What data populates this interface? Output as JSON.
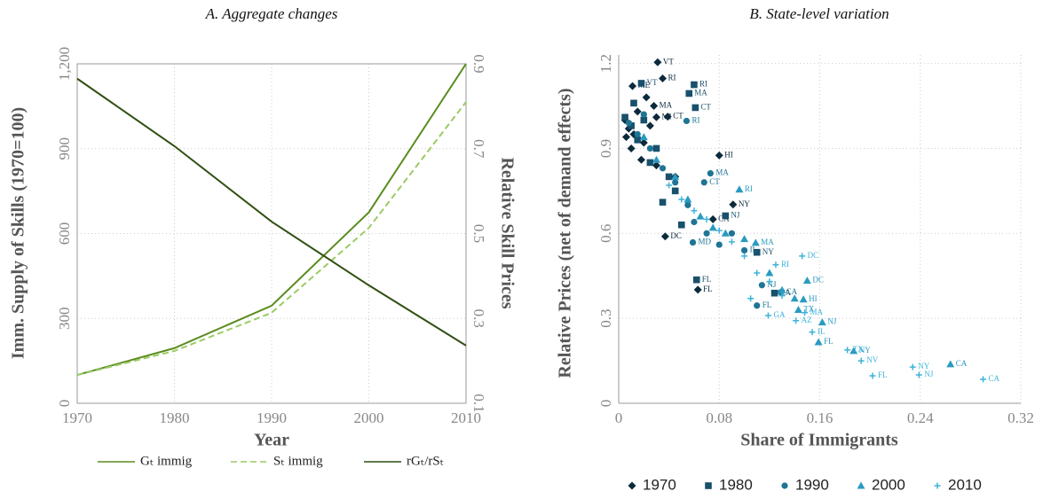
{
  "chart_data": [
    {
      "type": "line",
      "title": "A. Aggregate changes",
      "x_label": "Year",
      "y_label": "Imm. Supply of Skills (1970=100)",
      "y2_label": "Relative Skill Prices",
      "x": [
        1970,
        1980,
        1990,
        2000,
        2010
      ],
      "xlim": [
        1970,
        2010
      ],
      "xticks": [
        1970,
        1980,
        1990,
        2000,
        2010
      ],
      "ylim": [
        0,
        1200
      ],
      "yticks": [
        0,
        300,
        600,
        900,
        {
          "value": 1200,
          "label": "1,200"
        }
      ],
      "y2lim": [
        0.1,
        0.9
      ],
      "y2ticks": [
        0.1,
        0.3,
        0.5,
        0.7,
        0.9
      ],
      "grid": true,
      "legend": "bottom",
      "series": [
        {
          "name": "Gₜ immig",
          "color": "#5b8c1f",
          "dashed": false,
          "values": [
            100,
            195,
            345,
            675,
            1200
          ]
        },
        {
          "name": "Sₜ immig",
          "color": "#9bcb64",
          "dashed": true,
          "values": [
            100,
            185,
            320,
            620,
            1065
          ]
        },
        {
          "name": "rGₜ/rSₜ",
          "color": "#2f4f12",
          "dashed": false,
          "axis": "y2",
          "values": [
            0.865,
            0.706,
            0.528,
            0.378,
            0.236
          ]
        }
      ]
    },
    {
      "type": "scatter",
      "title": "B. State-level variation",
      "x_label": "Share of Immigrants",
      "y_label": "Relative Prices (net of demand effects)",
      "xlim": [
        0,
        0.32
      ],
      "xticks": [
        0,
        0.08,
        0.16,
        0.24,
        0.32
      ],
      "ylim": [
        0,
        1.23
      ],
      "yticks": [
        0,
        0.3,
        0.6,
        0.9,
        1.2
      ],
      "grid": true,
      "legend": "bottom",
      "series": [
        {
          "name": "1970",
          "color": "#0c2a3c",
          "marker": "diamond",
          "x": [
            0.031,
            0.035,
            0.011,
            0.028,
            0.039,
            0.03,
            0.08,
            0.091,
            0.037,
            0.063,
            0.075,
            0.005,
            0.008,
            0.012,
            0.015,
            0.02,
            0.01,
            0.025,
            0.018,
            0.03,
            0.006,
            0.045,
            0.022
          ],
          "values": [
            1.204,
            1.147,
            1.12,
            1.05,
            1.012,
            1.01,
            0.875,
            0.702,
            0.589,
            0.401,
            0.65,
            1.0,
            0.97,
            0.95,
            1.03,
            0.92,
            0.9,
            0.98,
            0.86,
            0.84,
            0.94,
            0.8,
            1.08
          ],
          "labels": [
            "VT",
            "RI",
            "ME",
            "MA",
            "CT",
            "MI",
            "HI",
            "NY",
            "DC",
            "FL",
            "CA",
            null,
            null,
            null,
            null,
            null,
            null,
            null,
            null,
            null,
            null,
            null,
            null
          ]
        },
        {
          "name": "1980",
          "color": "#19506b",
          "marker": "square",
          "x": [
            0.06,
            0.056,
            0.061,
            0.018,
            0.085,
            0.11,
            0.062,
            0.124,
            0.005,
            0.01,
            0.015,
            0.02,
            0.03,
            0.025,
            0.04,
            0.035,
            0.05,
            0.045,
            0.012
          ],
          "values": [
            1.125,
            1.094,
            1.044,
            1.13,
            0.662,
            0.533,
            0.436,
            0.389,
            1.01,
            0.98,
            0.93,
            1.0,
            0.9,
            0.85,
            0.8,
            0.71,
            0.63,
            0.75,
            1.06
          ],
          "labels": [
            "RI",
            "MA",
            "CT",
            "VT",
            "NJ",
            "NY",
            "FL",
            "CA",
            null,
            null,
            null,
            null,
            null,
            null,
            null,
            null,
            null,
            null,
            null
          ]
        },
        {
          "name": "1990",
          "color": "#1e7594",
          "marker": "circle",
          "x": [
            0.054,
            0.073,
            0.068,
            0.114,
            0.129,
            0.11,
            0.1,
            0.059,
            0.008,
            0.015,
            0.025,
            0.035,
            0.045,
            0.055,
            0.06,
            0.07,
            0.08,
            0.02,
            0.09
          ],
          "values": [
            0.997,
            0.812,
            0.78,
            0.417,
            0.392,
            0.345,
            0.54,
            0.568,
            0.99,
            0.95,
            0.9,
            0.83,
            0.78,
            0.7,
            0.64,
            0.6,
            0.56,
            1.02,
            0.6
          ],
          "labels": [
            "RI",
            "MA",
            "CT",
            "NJ",
            "CA",
            "FL",
            "IL",
            "MD",
            null,
            null,
            null,
            null,
            null,
            null,
            null,
            null,
            null,
            null,
            null
          ]
        },
        {
          "name": "2000",
          "color": "#2a9bc0",
          "marker": "triangle",
          "x": [
            0.096,
            0.109,
            0.15,
            0.147,
            0.162,
            0.159,
            0.187,
            0.264,
            0.143,
            0.02,
            0.03,
            0.045,
            0.055,
            0.065,
            0.075,
            0.085,
            0.1,
            0.12,
            0.13,
            0.14
          ],
          "values": [
            0.755,
            0.567,
            0.433,
            0.367,
            0.286,
            0.216,
            0.185,
            0.138,
            0.33,
            0.94,
            0.86,
            0.8,
            0.72,
            0.66,
            0.62,
            0.6,
            0.58,
            0.46,
            0.4,
            0.37
          ],
          "labels": [
            "RI",
            "MA",
            "DC",
            "HI",
            "NJ",
            "FL",
            "NY",
            "CA",
            "TX",
            null,
            null,
            null,
            null,
            null,
            null,
            null,
            null,
            null,
            null,
            null
          ]
        },
        {
          "name": "2010",
          "color": "#3db3da",
          "marker": "plus",
          "x": [
            0.146,
            0.125,
            0.148,
            0.141,
            0.154,
            0.182,
            0.193,
            0.234,
            0.239,
            0.202,
            0.29,
            0.119,
            0.04,
            0.05,
            0.06,
            0.07,
            0.08,
            0.09,
            0.1,
            0.105,
            0.11,
            0.12,
            0.13
          ],
          "values": [
            0.52,
            0.489,
            0.32,
            0.292,
            0.251,
            0.188,
            0.15,
            0.128,
            0.1,
            0.097,
            0.085,
            0.31,
            0.77,
            0.72,
            0.68,
            0.65,
            0.61,
            0.57,
            0.52,
            0.37,
            0.46,
            0.43,
            0.38
          ],
          "labels": [
            "DC",
            "RI",
            "MA",
            "AZ",
            "IL",
            "TX",
            "NV",
            "NY",
            "NJ",
            "FL",
            "CA",
            "GA",
            null,
            null,
            null,
            null,
            null,
            null,
            null,
            null,
            null,
            null,
            null
          ]
        }
      ]
    }
  ]
}
